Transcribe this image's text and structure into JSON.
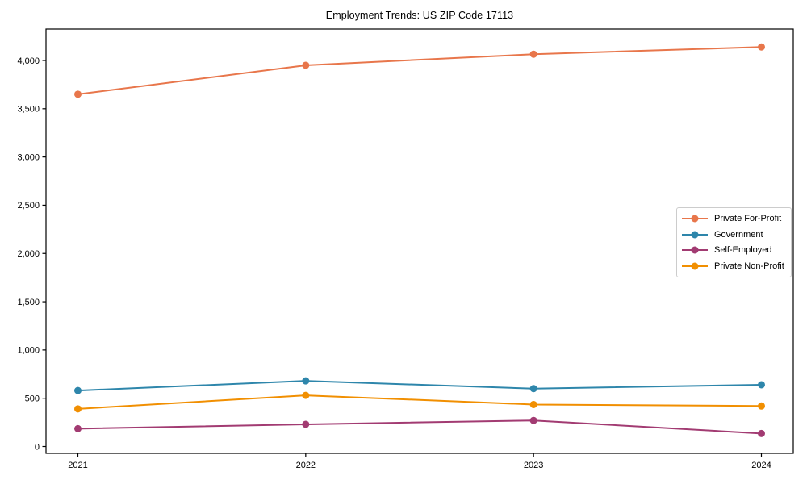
{
  "chart_data": {
    "type": "line",
    "title": "Employment Trends: US ZIP Code 17113",
    "xlabel": "",
    "ylabel": "",
    "x_categories": [
      "2021",
      "2022",
      "2023",
      "2024"
    ],
    "y_ticks": [
      0,
      500,
      1000,
      1500,
      2000,
      2500,
      3000,
      3500,
      4000
    ],
    "y_tick_labels": [
      "0",
      "500",
      "1,000",
      "1,500",
      "2,000",
      "2,500",
      "3,000",
      "3,500",
      "4,000"
    ],
    "ylim": [
      -71,
      4326
    ],
    "grid": false,
    "legend_position": "center-right",
    "series": [
      {
        "name": "Private For-Profit",
        "color": "#E8764B",
        "values": [
          3650,
          3950,
          4065,
          4140
        ]
      },
      {
        "name": "Government",
        "color": "#2E86AB",
        "values": [
          580,
          680,
          600,
          640
        ]
      },
      {
        "name": "Self-Employed",
        "color": "#A23B72",
        "values": [
          185,
          230,
          270,
          135
        ]
      },
      {
        "name": "Private Non-Profit",
        "color": "#F18F01",
        "values": [
          390,
          530,
          435,
          420
        ]
      }
    ]
  }
}
